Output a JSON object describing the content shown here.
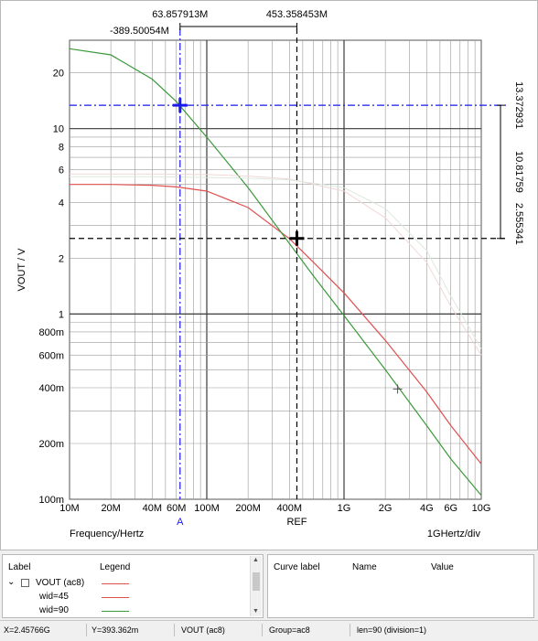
{
  "chart_data": {
    "type": "line",
    "x_scale": "log",
    "y_scale": "log",
    "xlim": [
      "10M",
      "10G"
    ],
    "ylim": [
      "100m",
      "30"
    ],
    "ylabel": "VOUT / V",
    "x_axis_caption": "Frequency/Hertz",
    "x_div_caption": "1GHertz/div",
    "x_ticks": [
      "10M",
      "20M",
      "40M",
      "60M",
      "100M",
      "200M",
      "400M",
      "1G",
      "2G",
      "4G",
      "6G",
      "10G"
    ],
    "y_ticks": [
      "20",
      "10",
      "8",
      "6",
      "4",
      "2",
      "1",
      "800m",
      "600m",
      "400m",
      "200m",
      "100m"
    ],
    "grid": true,
    "series": [
      {
        "name": "wid=45",
        "color": "#e05050",
        "x": [
          10000000.0,
          20000000.0,
          40000000.0,
          60000000.0,
          100000000.0,
          200000000.0,
          400000000.0,
          600000000.0,
          1000000000.0,
          2000000000.0,
          4000000000.0,
          6000000000.0,
          10000000000.0
        ],
        "y": [
          5.0,
          5.0,
          4.95,
          4.85,
          4.6,
          3.75,
          2.55,
          1.9,
          1.3,
          0.72,
          0.38,
          0.25,
          0.155
        ]
      },
      {
        "name": "wid=90",
        "color": "#3a9a3a",
        "x": [
          10000000.0,
          20000000.0,
          40000000.0,
          60000000.0,
          100000000.0,
          200000000.0,
          400000000.0,
          600000000.0,
          1000000000.0,
          2000000000.0,
          4000000000.0,
          6000000000.0,
          10000000000.0
        ],
        "y": [
          27.0,
          25.0,
          18.5,
          14.0,
          9.0,
          4.8,
          2.4,
          1.6,
          0.98,
          0.5,
          0.25,
          0.165,
          0.105
        ]
      },
      {
        "name": "",
        "color": "#f0d8d8",
        "x": [
          10000000.0,
          40000000.0,
          100000000.0,
          200000000.0,
          400000000.0,
          1000000000.0,
          2000000000.0,
          4000000000.0,
          6000000000.0,
          10000000000.0
        ],
        "y": [
          5.7,
          5.7,
          5.65,
          5.55,
          5.35,
          4.6,
          3.3,
          1.9,
          1.1,
          0.6
        ]
      },
      {
        "name": "",
        "color": "#dde8dd",
        "x": [
          10000000.0,
          40000000.0,
          100000000.0,
          200000000.0,
          400000000.0,
          1000000000.0,
          2000000000.0,
          4000000000.0,
          6000000000.0,
          10000000000.0
        ],
        "y": [
          5.5,
          5.5,
          5.45,
          5.4,
          5.3,
          4.8,
          3.7,
          2.2,
          1.25,
          0.65
        ]
      }
    ],
    "cursors": {
      "A": {
        "label": "A",
        "x": 63857913.0,
        "y": 13.372931,
        "color": "#1a1aee"
      },
      "REF": {
        "label": "REF",
        "x": 453358453.0,
        "y": 2.555341,
        "color": "#000000"
      }
    },
    "marker_point": {
      "x": 2457660000.0,
      "y": 0.393362
    },
    "cursor_x_readout": {
      "a_value": "63.857913M",
      "delta": "-389.50054M",
      "ref_value": "453.358453M"
    },
    "cursor_y_readout": {
      "a_value": "13.372931",
      "delta": "10.81759",
      "ref_value": "2.555341"
    }
  },
  "legend": {
    "header_label": "Label",
    "header_legend": "Legend",
    "items": [
      {
        "label": "VOUT (ac8)",
        "color": "#e05050"
      },
      {
        "label": "wid=45",
        "color": "#e05050"
      },
      {
        "label": "wid=90",
        "color": "#3a9a3a"
      }
    ],
    "scroll_up": "▲",
    "scroll_down": "▼"
  },
  "value_panel": {
    "header_curve": "Curve label",
    "header_name": "Name",
    "header_value": "Value"
  },
  "status": {
    "x": "X=2.45766G",
    "y": "Y=393.362m",
    "signal": "VOUT (ac8)",
    "group": "Group=ac8",
    "len": "len=90 (division=1)"
  }
}
